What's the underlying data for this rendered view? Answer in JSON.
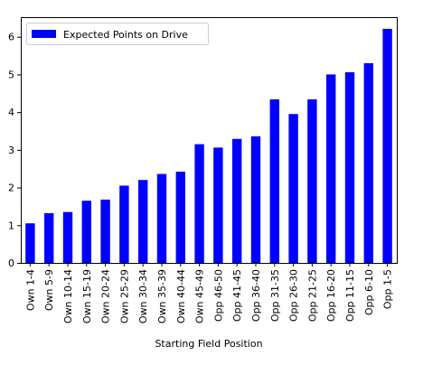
{
  "chart_data": {
    "type": "bar",
    "categories": [
      "Own 1-4",
      "Own 5-9",
      "Own 10-14",
      "Own 15-19",
      "Own 20-24",
      "Own 25-29",
      "Own 30-34",
      "Own 35-39",
      "Own 40-44",
      "Own 45-49",
      "Opp 46-50",
      "Opp 41-45",
      "Opp 36-40",
      "Opp 31-35",
      "Opp 26-30",
      "Opp 21-25",
      "Opp 16-20",
      "Opp 11-15",
      "Opp 6-10",
      "Opp 1-5"
    ],
    "series": [
      {
        "name": "Expected Points on Drive",
        "color": "#0000ff",
        "values": [
          1.05,
          1.32,
          1.35,
          1.65,
          1.68,
          2.05,
          2.2,
          2.36,
          2.42,
          3.15,
          3.06,
          3.29,
          3.36,
          4.34,
          3.95,
          4.34,
          5.0,
          5.06,
          5.3,
          6.21
        ]
      }
    ],
    "title": "",
    "xlabel": "Starting Field Position",
    "ylabel": "",
    "ylim": [
      0,
      6.52
    ],
    "yticks": [
      0,
      1,
      2,
      3,
      4,
      5,
      6
    ],
    "grid": false,
    "legend": "top-left"
  }
}
